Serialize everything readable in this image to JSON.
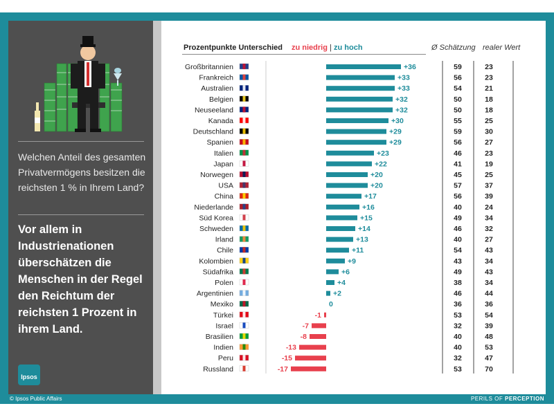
{
  "header": {
    "title": "Prozentpunkte Unterschied",
    "low_label": "zu niedrig",
    "separator": "|",
    "high_label": "zu hoch",
    "estimate_label": "Ø Schätzung",
    "real_label": "realer Wert"
  },
  "left_panel": {
    "question": "Welchen Anteil des gesamten Privatvermögens besitzen die reichsten 1 % in Ihrem Land?",
    "statement": "Vor allem in Industrienationen überschätzen die Menschen in der Regel den Reichtum der reichsten 1 Prozent in ihrem Land.",
    "logo_text": "Ipsos"
  },
  "footer": {
    "copyright": "© Ipsos Public Affairs",
    "brand_prefix": "PERILS OF",
    "brand_strong": "PERCEPTION"
  },
  "colors": {
    "positive": "#1e8c9b",
    "negative": "#e8404d",
    "panel": "#4f4f4f"
  },
  "chart_data": {
    "type": "bar",
    "title": "Prozentpunkte Unterschied",
    "categories": [
      "Großbritannien",
      "Frankreich",
      "Australien",
      "Belgien",
      "Neuseeland",
      "Kanada",
      "Deutschland",
      "Spanien",
      "Italien",
      "Japan",
      "Norwegen",
      "USA",
      "China",
      "Niederlande",
      "Süd Korea",
      "Schweden",
      "Irland",
      "Chile",
      "Kolombien",
      "Südafrika",
      "Polen",
      "Argentinien",
      "Mexiko",
      "Türkei",
      "Israel",
      "Brasilien",
      "Indien",
      "Peru",
      "Russland"
    ],
    "values": [
      36,
      33,
      33,
      32,
      32,
      30,
      29,
      29,
      23,
      22,
      20,
      20,
      17,
      16,
      15,
      14,
      13,
      11,
      9,
      6,
      4,
      2,
      0,
      -1,
      -7,
      -8,
      -13,
      -15,
      -17
    ],
    "value_labels": [
      "+36",
      "+33",
      "+33",
      "+32",
      "+32",
      "+30",
      "+29",
      "+29",
      "+23",
      "+22",
      "+20",
      "+20",
      "+17",
      "+16",
      "+15",
      "+14",
      "+13",
      "+11",
      "+9",
      "+6",
      "+4",
      "+2",
      "0",
      "-1",
      "-7",
      "-8",
      "-13",
      "-15",
      "-17"
    ],
    "estimate": [
      59,
      56,
      54,
      50,
      50,
      55,
      59,
      56,
      46,
      41,
      45,
      57,
      56,
      40,
      49,
      46,
      40,
      54,
      43,
      49,
      38,
      46,
      36,
      53,
      32,
      40,
      40,
      32,
      53
    ],
    "real": [
      23,
      23,
      21,
      18,
      18,
      25,
      30,
      27,
      23,
      19,
      25,
      37,
      39,
      24,
      34,
      32,
      27,
      43,
      34,
      43,
      34,
      44,
      36,
      54,
      39,
      48,
      53,
      47,
      70
    ],
    "flag_icons": [
      "flag-gb-icon",
      "flag-fr-icon",
      "flag-au-icon",
      "flag-be-icon",
      "flag-nz-icon",
      "flag-ca-icon",
      "flag-de-icon",
      "flag-es-icon",
      "flag-it-icon",
      "flag-jp-icon",
      "flag-no-icon",
      "flag-us-icon",
      "flag-cn-icon",
      "flag-nl-icon",
      "flag-kr-icon",
      "flag-se-icon",
      "flag-ie-icon",
      "flag-cl-icon",
      "flag-co-icon",
      "flag-za-icon",
      "flag-pl-icon",
      "flag-ar-icon",
      "flag-mx-icon",
      "flag-tr-icon",
      "flag-il-icon",
      "flag-br-icon",
      "flag-in-icon",
      "flag-pe-icon",
      "flag-ru-icon"
    ],
    "xlabel": "",
    "ylabel": "",
    "xlim": [
      -20,
      40
    ]
  }
}
